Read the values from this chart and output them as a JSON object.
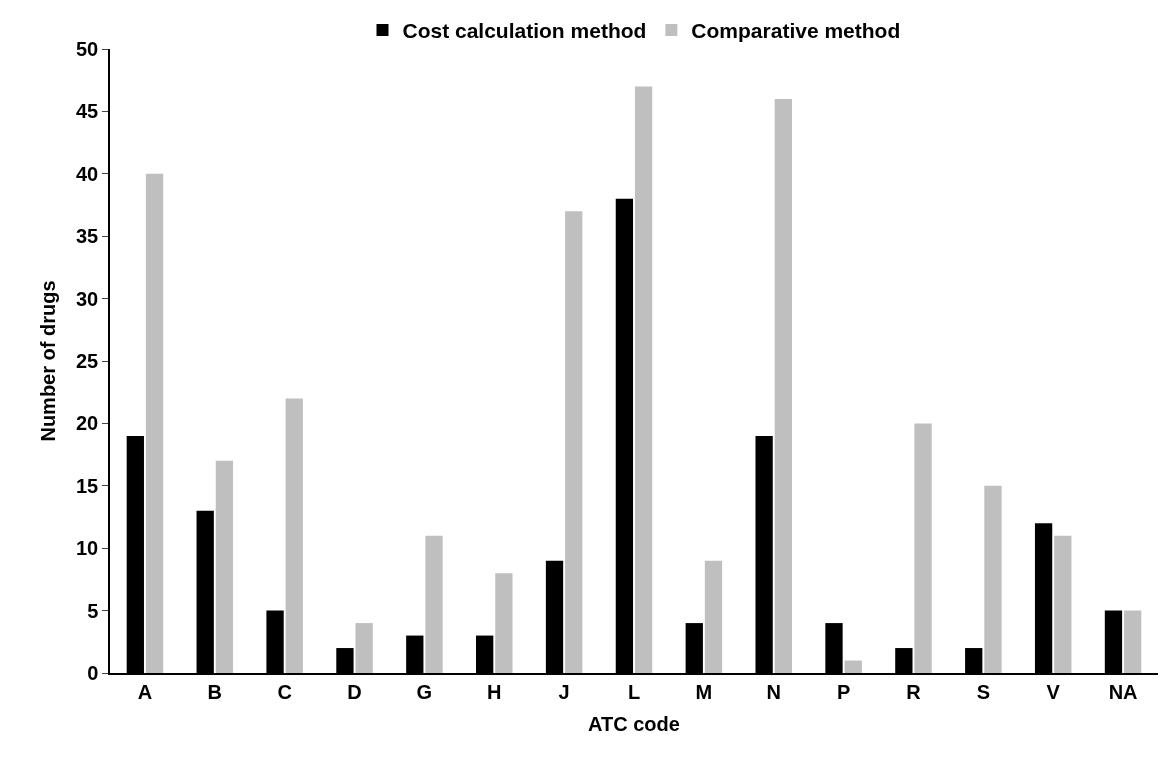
{
  "chart_data": {
    "type": "bar",
    "xlabel": "ATC code",
    "ylabel": "Number of drugs",
    "categories": [
      "A",
      "B",
      "C",
      "D",
      "G",
      "H",
      "J",
      "L",
      "M",
      "N",
      "P",
      "R",
      "S",
      "V",
      "NA"
    ],
    "series": [
      {
        "name": "Cost calculation method",
        "color": "#000000",
        "values": [
          19,
          13,
          5,
          2,
          3,
          3,
          9,
          38,
          4,
          19,
          4,
          2,
          2,
          12,
          5
        ]
      },
      {
        "name": "Comparative method",
        "color": "#bfbfbf",
        "values": [
          40,
          17,
          22,
          4,
          11,
          8,
          37,
          47,
          9,
          46,
          1,
          20,
          15,
          11,
          5
        ]
      }
    ],
    "ylim": [
      0,
      50
    ],
    "yticks": [
      0,
      5,
      10,
      15,
      20,
      25,
      30,
      35,
      40,
      45,
      50
    ],
    "legend": "top"
  }
}
